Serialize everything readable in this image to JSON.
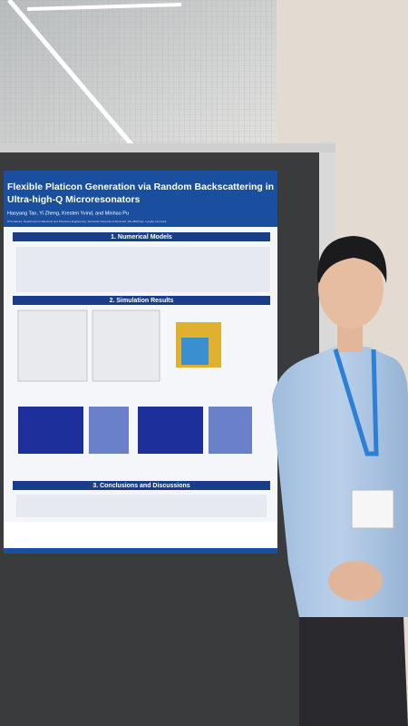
{
  "poster": {
    "title_lines": [
      "Flexible Platicon Generation via Random Backscattering in",
      "Ultra-high-Q Microresonators"
    ],
    "authors": "Haoyang Tan, Yi Zheng, Kresten Yvind, and Minhao Pu",
    "affiliation": "DTU Electro, Department of Electrical and Photonics Engineering, Technical University of Denmark, DK-2800 Kgs. Lyngby, Denmark",
    "sections": [
      "1. Numerical Models",
      "2. Simulation Results",
      "3. Conclusions and Discussions"
    ]
  }
}
